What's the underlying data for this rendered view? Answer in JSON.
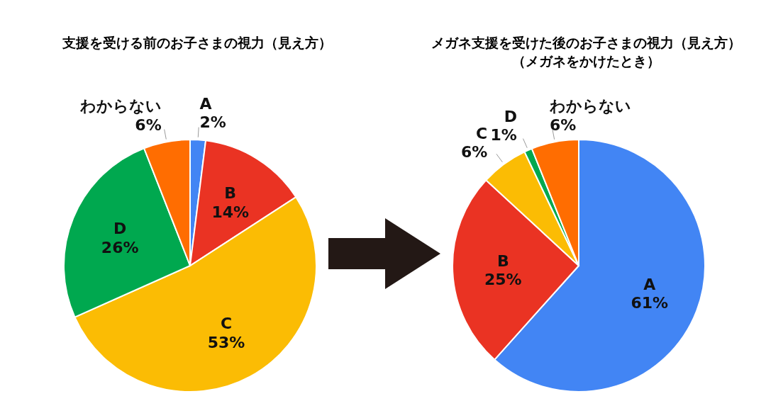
{
  "chart_data": [
    {
      "type": "pie",
      "title": "支援を受ける前のお子さまの視力（見え方）",
      "categories": [
        "A",
        "B",
        "C",
        "D",
        "わからない"
      ],
      "values": [
        2,
        14,
        53,
        26,
        6
      ],
      "value_labels": [
        "2%",
        "14%",
        "53%",
        "26%",
        "6%"
      ],
      "colors": [
        "#4285f4",
        "#ea3323",
        "#fbbc04",
        "#00a84f",
        "#ff6d01"
      ],
      "legend": false
    },
    {
      "type": "pie",
      "title": "メガネ支援を受けた後のお子さまの視力（見え方）",
      "subtitle": "（メガネをかけたとき）",
      "categories": [
        "A",
        "B",
        "C",
        "D",
        "わからない"
      ],
      "values": [
        61,
        25,
        6,
        1,
        6
      ],
      "value_labels": [
        "61%",
        "25%",
        "6%",
        "1%",
        "6%"
      ],
      "colors": [
        "#4285f4",
        "#ea3323",
        "#fbbc04",
        "#00a84f",
        "#ff6d01"
      ],
      "legend": false
    }
  ]
}
